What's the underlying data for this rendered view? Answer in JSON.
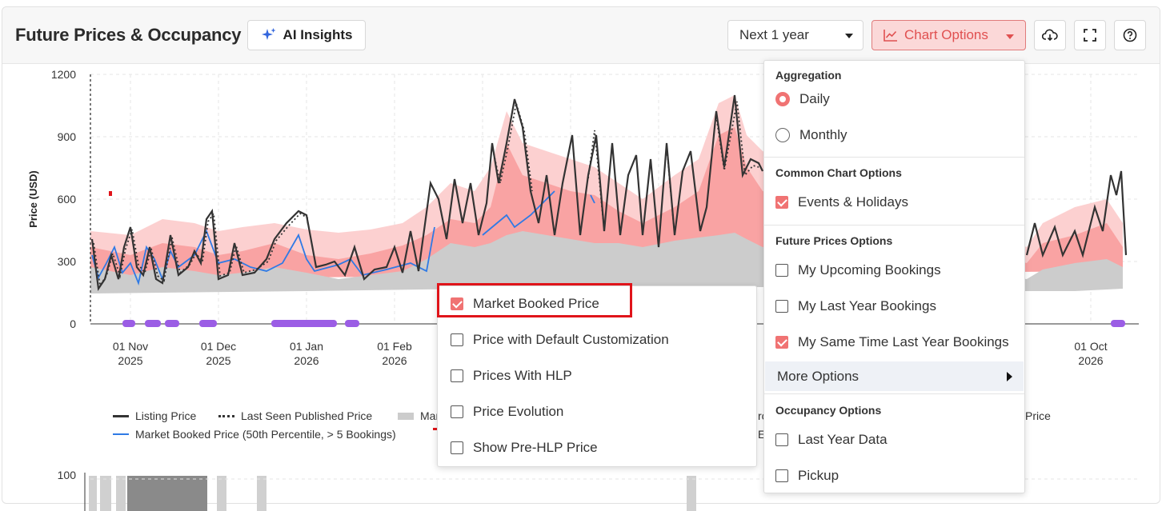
{
  "header": {
    "title": "Future Prices & Occupancy",
    "ai_insights_label": "AI Insights",
    "period_value": "Next 1 year",
    "chart_options_label": "Chart Options",
    "icons": [
      "download-cloud-icon",
      "fullscreen-icon",
      "help-icon"
    ]
  },
  "chart": {
    "ylabel": "Price (USD)",
    "y_ticks": [
      "1200",
      "900",
      "600",
      "300",
      "0"
    ],
    "x_ticks": [
      {
        "month": "01 Nov",
        "year": "2025"
      },
      {
        "month": "01 Dec",
        "year": "2025"
      },
      {
        "month": "01 Jan",
        "year": "2026"
      },
      {
        "month": "01 Feb",
        "year": "2026"
      },
      {
        "month": "01 Oct",
        "year": "2026"
      }
    ],
    "lower_chart_y_tick": "100"
  },
  "legend": {
    "listing_price": "Listing Price",
    "last_seen": "Last Seen Published Price",
    "market_partial": "Mar",
    "partial_right_1": "rc",
    "partial_right_2": "Price",
    "market_booked_50": "Market Booked Price (50th Percentile, > 5 Bookings)",
    "partial_right_3": "Ev"
  },
  "chart_options_menu": {
    "aggregation_title": "Aggregation",
    "daily": "Daily",
    "monthly": "Monthly",
    "common_title": "Common Chart Options",
    "events_holidays": "Events & Holidays",
    "future_title": "Future Prices Options",
    "my_upcoming": "My Upcoming Bookings",
    "my_last_year": "My Last Year Bookings",
    "my_same_time": "My Same Time Last Year Bookings",
    "more_options": "More Options",
    "occupancy_title": "Occupancy Options",
    "last_year_data": "Last Year Data",
    "pickup": "Pickup"
  },
  "more_options_submenu": {
    "market_booked_price": "Market Booked Price",
    "default_customization": "Price with Default Customization",
    "prices_with_hlp": "Prices With HLP",
    "price_evolution": "Price Evolution",
    "pre_hlp": "Show Pre-HLP Price"
  },
  "state": {
    "aggregation_selected": "Daily",
    "events_holidays_checked": true,
    "my_upcoming_checked": false,
    "my_last_year_checked": false,
    "my_same_time_checked": true,
    "last_year_data_checked": false,
    "pickup_checked": false,
    "market_booked_price_checked": true,
    "default_customization_checked": false,
    "prices_with_hlp_checked": false,
    "price_evolution_checked": false,
    "pre_hlp_checked": false
  },
  "colors": {
    "accent": "#f07373",
    "accent_light": "#fbd8d8",
    "band_gray": "#cccccc",
    "band_pink": "#f9a3a3",
    "band_light_pink": "#fcd0d0",
    "listing_line": "#333333",
    "market_blue": "#2f7ae5",
    "event_purple": "#9b5de5",
    "highlight_red": "#e0141a"
  }
}
